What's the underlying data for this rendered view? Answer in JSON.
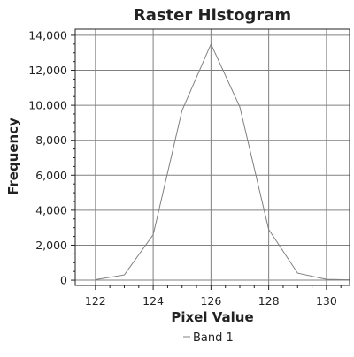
{
  "chart_data": {
    "type": "line",
    "title": "Raster Histogram",
    "xlabel": "Pixel Value",
    "ylabel": "Frequency",
    "xlim": [
      121.3,
      130.8
    ],
    "ylim": [
      -300,
      14350
    ],
    "x_ticks": [
      122,
      124,
      126,
      128,
      130
    ],
    "x_tick_labels": [
      "122",
      "124",
      "126",
      "128",
      "130"
    ],
    "y_ticks": [
      0,
      2000,
      4000,
      6000,
      8000,
      10000,
      12000,
      14000
    ],
    "y_tick_labels": [
      "0",
      "2,000",
      "4,000",
      "6,000",
      "8,000",
      "10,000",
      "12,000",
      "14,000"
    ],
    "grid": true,
    "legend_position": "bottom-center",
    "series": [
      {
        "name": "Band 1",
        "color": "#808080",
        "x": [
          122,
          123,
          124,
          125,
          126,
          127,
          128,
          129,
          130,
          131
        ],
        "y": [
          30,
          300,
          2600,
          9700,
          13500,
          9900,
          2900,
          400,
          50,
          20
        ]
      }
    ]
  }
}
